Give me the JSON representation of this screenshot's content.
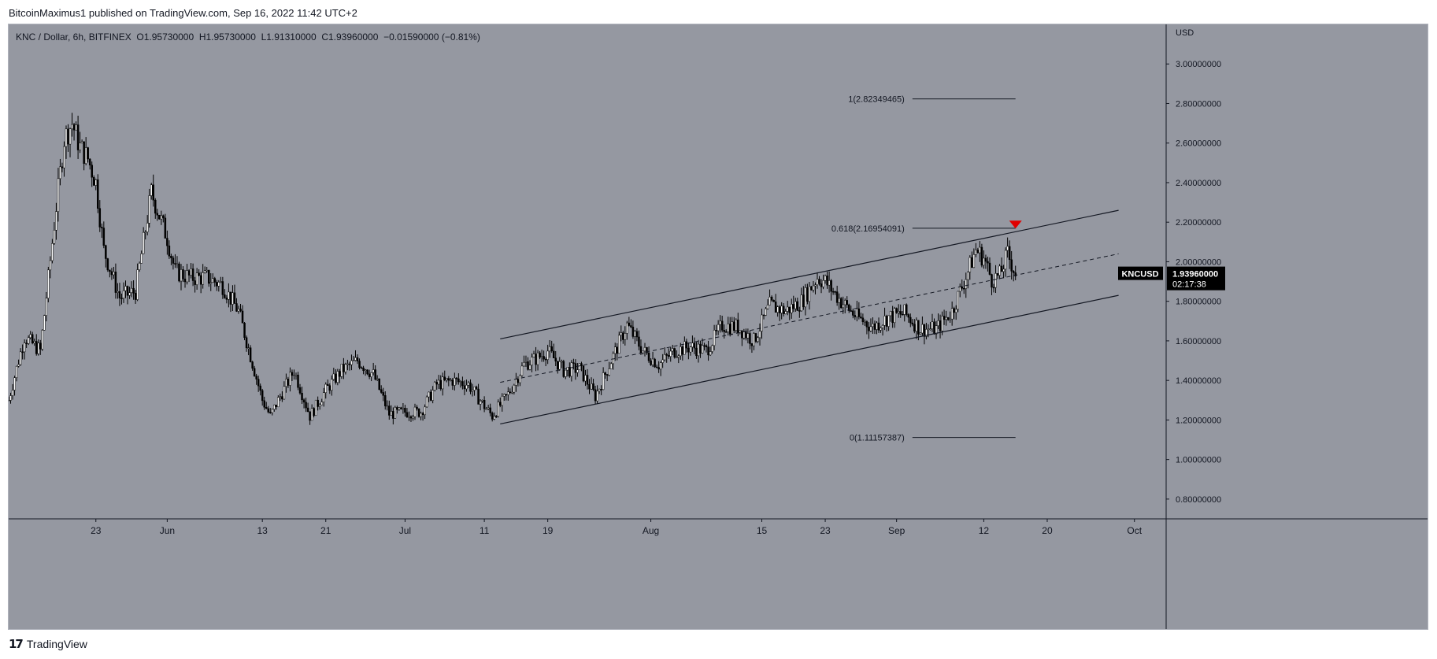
{
  "header": {
    "publisher_line": "BitcoinMaximus1 published on TradingView.com, Sep 16, 2022 11:42 UTC+2"
  },
  "legend": {
    "symbol_line": "KNC / Dollar, 6h, BITFINEX",
    "open_label": "O",
    "open": "1.95730000",
    "high_label": "H",
    "high": "1.95730000",
    "low_label": "L",
    "low": "1.91310000",
    "close_label": "C",
    "close": "1.93960000",
    "change": "−0.01590000 (−0.81%)"
  },
  "footer": {
    "logo_mark": "17",
    "logo_text": "TradingView"
  },
  "colors": {
    "background": "#9598a1",
    "candles": "#000000",
    "price_tag_bg": "#000000",
    "marker": "#e00000"
  },
  "chart_data": {
    "type": "line",
    "title": "KNC / Dollar, 6h, BITFINEX",
    "currency_label": "USD",
    "y_ticks": [
      "3.00000000",
      "2.80000000",
      "2.60000000",
      "2.40000000",
      "2.20000000",
      "2.00000000",
      "1.80000000",
      "1.60000000",
      "1.40000000",
      "1.20000000",
      "1.00000000",
      "0.80000000"
    ],
    "y_tick_values": [
      3.0,
      2.8,
      2.6,
      2.4,
      2.2,
      2.0,
      1.8,
      1.6,
      1.4,
      1.2,
      1.0,
      0.8
    ],
    "ylim": [
      0.7,
      3.2
    ],
    "x_ticks": [
      {
        "label": "23",
        "date": "2022-05-23"
      },
      {
        "label": "Jun",
        "date": "2022-06-01"
      },
      {
        "label": "13",
        "date": "2022-06-13"
      },
      {
        "label": "21",
        "date": "2022-06-21"
      },
      {
        "label": "Jul",
        "date": "2022-07-01"
      },
      {
        "label": "11",
        "date": "2022-07-11"
      },
      {
        "label": "19",
        "date": "2022-07-19"
      },
      {
        "label": "Aug",
        "date": "2022-08-01"
      },
      {
        "label": "15",
        "date": "2022-08-15"
      },
      {
        "label": "23",
        "date": "2022-08-23"
      },
      {
        "label": "Sep",
        "date": "2022-09-01"
      },
      {
        "label": "12",
        "date": "2022-09-12"
      },
      {
        "label": "20",
        "date": "2022-09-20"
      },
      {
        "label": "Oct",
        "date": "2022-10-01"
      }
    ],
    "xlim": [
      "2022-05-12",
      "2022-10-05"
    ],
    "series": [
      {
        "x": [
          "2022-05-12",
          "2022-05-14",
          "2022-05-16",
          "2022-05-18",
          "2022-05-19",
          "2022-05-20",
          "2022-05-21",
          "2022-05-22",
          "2022-05-23",
          "2022-05-24",
          "2022-05-26",
          "2022-05-28",
          "2022-05-30",
          "2022-06-01",
          "2022-06-02",
          "2022-06-04",
          "2022-06-06",
          "2022-06-08",
          "2022-06-10",
          "2022-06-12",
          "2022-06-13",
          "2022-06-14",
          "2022-06-15",
          "2022-06-17",
          "2022-06-19",
          "2022-06-21",
          "2022-06-23",
          "2022-06-25",
          "2022-06-27",
          "2022-06-29",
          "2022-07-01",
          "2022-07-03",
          "2022-07-05",
          "2022-07-07",
          "2022-07-09",
          "2022-07-11",
          "2022-07-12",
          "2022-07-14",
          "2022-07-16",
          "2022-07-18",
          "2022-07-19",
          "2022-07-21",
          "2022-07-23",
          "2022-07-25",
          "2022-07-27",
          "2022-07-29",
          "2022-07-31",
          "2022-08-02",
          "2022-08-04",
          "2022-08-06",
          "2022-08-08",
          "2022-08-10",
          "2022-08-12",
          "2022-08-14",
          "2022-08-16",
          "2022-08-18",
          "2022-08-20",
          "2022-08-22",
          "2022-08-23",
          "2022-08-25",
          "2022-08-27",
          "2022-08-29",
          "2022-08-31",
          "2022-09-02",
          "2022-09-04",
          "2022-09-06",
          "2022-09-08",
          "2022-09-10",
          "2022-09-11",
          "2022-09-12",
          "2022-09-13",
          "2022-09-14",
          "2022-09-15",
          "2022-09-16"
        ],
        "values": [
          1.3,
          1.62,
          1.55,
          2.28,
          2.62,
          2.7,
          2.58,
          2.52,
          2.4,
          2.06,
          1.82,
          1.85,
          2.35,
          2.12,
          1.95,
          1.92,
          1.92,
          1.88,
          1.75,
          1.45,
          1.3,
          1.22,
          1.3,
          1.45,
          1.22,
          1.35,
          1.45,
          1.5,
          1.43,
          1.23,
          1.24,
          1.24,
          1.38,
          1.4,
          1.38,
          1.27,
          1.22,
          1.33,
          1.48,
          1.52,
          1.55,
          1.45,
          1.46,
          1.32,
          1.5,
          1.68,
          1.55,
          1.48,
          1.55,
          1.57,
          1.55,
          1.68,
          1.67,
          1.6,
          1.78,
          1.75,
          1.8,
          1.92,
          1.9,
          1.8,
          1.72,
          1.67,
          1.72,
          1.74,
          1.66,
          1.66,
          1.75,
          1.95,
          2.06,
          2.02,
          1.91,
          1.93,
          2.04,
          1.94
        ]
      }
    ],
    "annotations": {
      "fib_levels": [
        {
          "label": "1(2.82349465)",
          "value": 2.82349465
        },
        {
          "label": "0.618(2.16954091)",
          "value": 2.16954091
        },
        {
          "label": "0(1.11157387)",
          "value": 1.11157387
        }
      ],
      "channel": {
        "start_date": "2022-07-13",
        "end_date": "2022-09-29",
        "upper": [
          1.61,
          2.26
        ],
        "middle": [
          1.39,
          2.04
        ],
        "lower": [
          1.18,
          1.83
        ]
      },
      "rejection_marker": {
        "date": "2022-09-16",
        "value": 2.18
      }
    },
    "price_tag": {
      "symbol": "KNCUSD",
      "price": "1.93960000",
      "value": 1.9396,
      "countdown": "02:17:38"
    },
    "grid": false
  }
}
